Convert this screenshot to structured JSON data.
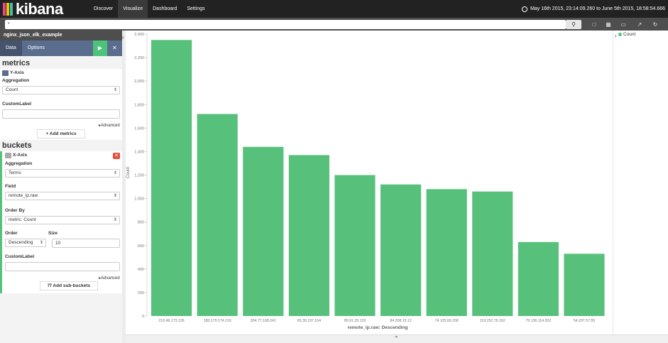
{
  "app": {
    "logo_text": "kibana"
  },
  "nav": {
    "items": [
      "Discover",
      "Visualize",
      "Dashboard",
      "Settings"
    ],
    "active": "Visualize"
  },
  "timepicker": {
    "range": "May 16th 2015, 23:14:09.260 to June 5th 2015, 18:58:54.666"
  },
  "search": {
    "query": "*"
  },
  "toolbar": {
    "icons": [
      "new-visualization-icon",
      "save-icon",
      "open-icon",
      "share-icon",
      "refresh-icon"
    ]
  },
  "sidebar": {
    "index_pattern": "nginx_json_elk_example",
    "tabs": [
      "Data",
      "Options"
    ],
    "active_tab": "Data",
    "metrics": {
      "heading": "metrics",
      "axis_label": "Y-Axis",
      "aggregation_label": "Aggregation",
      "aggregation_value": "Count",
      "custom_label": "CustomLabel",
      "custom_value": "",
      "advanced": "Advanced",
      "add_button": "Add metrics"
    },
    "buckets": {
      "heading": "buckets",
      "axis_label": "X-Axis",
      "aggregation_label": "Aggregation",
      "aggregation_value": "Terms",
      "field_label": "Field",
      "field_value": "remote_ip.raw",
      "orderby_label": "Order By",
      "orderby_value": "metric: Count",
      "order_label": "Order",
      "order_value": "Descending",
      "size_label": "Size",
      "size_value": "10",
      "custom_label": "CustomLabel",
      "custom_value": "",
      "advanced": "Advanced",
      "add_button": "Add sub-buckets"
    }
  },
  "legend": {
    "items": [
      "Count"
    ]
  },
  "colors": {
    "bar": "#57c17b",
    "accent": "#5a6d8e",
    "remove": "#e74c3c"
  },
  "chart_data": {
    "type": "bar",
    "categories": [
      "216.46.173.126",
      "180.179.174.219",
      "204.77.168.241",
      "65.39.197.164",
      "80.91.33.133",
      "84.208.15.12",
      "74.125.60.158",
      "119.252.76.162",
      "79.136.114.202",
      "54.207.57.55"
    ],
    "values": [
      2350,
      1720,
      1440,
      1370,
      1200,
      1120,
      1080,
      1060,
      630,
      530
    ],
    "title": "",
    "xlabel": "remote_ip.raw: Descending",
    "ylabel": "Count",
    "ylim": [
      0,
      2400
    ],
    "yticks": [
      0,
      200,
      400,
      600,
      800,
      1000,
      1200,
      1400,
      1600,
      1800,
      2000,
      2200,
      2400
    ],
    "ytick_labels": [
      "0",
      "200",
      "400",
      "600",
      "800",
      "1,000",
      "1,200",
      "1,400",
      "1,600",
      "1,800",
      "2,000",
      "2,200",
      "2,400"
    ],
    "series": [
      {
        "name": "Count",
        "values": [
          2350,
          1720,
          1440,
          1370,
          1200,
          1120,
          1080,
          1060,
          630,
          530
        ]
      }
    ],
    "grid": false,
    "legend_position": "right"
  }
}
